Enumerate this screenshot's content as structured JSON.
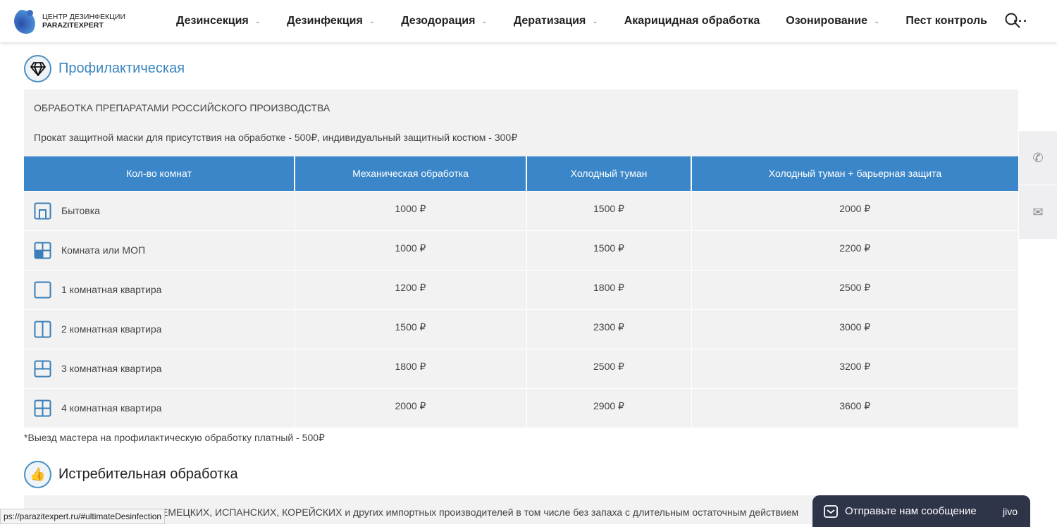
{
  "header": {
    "logo_line1": "ЦЕНТР ДЕЗИНФЕКЦИИ",
    "logo_line2": "PARAZITEXPERT",
    "nav": [
      {
        "label": "Дезинсекция",
        "dropdown": true
      },
      {
        "label": "Дезинфекция",
        "dropdown": true
      },
      {
        "label": "Дезодорация",
        "dropdown": true
      },
      {
        "label": "Дератизация",
        "dropdown": true
      },
      {
        "label": "Акарицидная обработка",
        "dropdown": false
      },
      {
        "label": "Озонирование",
        "dropdown": true
      },
      {
        "label": "Пест контроль",
        "dropdown": false
      }
    ],
    "more": "···"
  },
  "section1": {
    "title": "Профилактическая",
    "icon": "diamond-icon",
    "line1": "ОБРАБОТКА ПРЕПАРАТАМИ РОССИЙСКОГО ПРОИЗВОДСТВА",
    "line2": "Прокат защитной маски для присутствия на обработке - 500₽, индивидуальный защитный костюм - 300₽",
    "table": {
      "headers": [
        "Кол-во комнат",
        "Механическая обработка",
        "Холодный туман",
        "Холодный туман + барьерная защита"
      ],
      "rows": [
        {
          "icon": "utility-room-icon",
          "name": "Бытовка",
          "values": [
            "1000 ₽",
            "1500 ₽",
            "2000 ₽"
          ]
        },
        {
          "icon": "room-icon",
          "name": "Комната или МОП",
          "values": [
            "1000 ₽",
            "1500 ₽",
            "2200 ₽"
          ]
        },
        {
          "icon": "one-room-icon",
          "name": "1 комнатная квартира",
          "values": [
            "1200 ₽",
            "1800 ₽",
            "2500 ₽"
          ]
        },
        {
          "icon": "two-room-icon",
          "name": "2 комнатная квартира",
          "values": [
            "1500 ₽",
            "2300 ₽",
            "3000 ₽"
          ]
        },
        {
          "icon": "three-room-icon",
          "name": "3 комнатная квартира",
          "values": [
            "1800 ₽",
            "2500 ₽",
            "3200 ₽"
          ]
        },
        {
          "icon": "four-room-icon",
          "name": "4 комнатная квартира",
          "values": [
            "2000 ₽",
            "2900 ₽",
            "3600 ₽"
          ]
        }
      ]
    },
    "footnote": "*Выезд мастера на профилактическую обработку платный - 500₽"
  },
  "section2": {
    "title": "Истребительная обработка",
    "icon": "thumbs-up-icon",
    "line1": "ЕМЕЦКИХ, ИСПАНСКИХ, КОРЕЙСКИХ и других импортных производителей в том числе без запаха с длительным остаточным действием"
  },
  "status_url": "ps://parazitexpert.ru/#ultimateDesinfection",
  "chat": {
    "label": "Отправьте нам сообщение",
    "brand": "jivo"
  },
  "colors": {
    "accent": "#3a86c8",
    "chat_bg": "#2f3548"
  }
}
